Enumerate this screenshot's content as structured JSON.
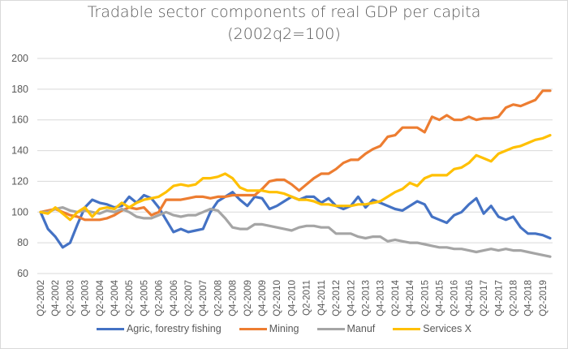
{
  "chart_data": {
    "type": "line",
    "title": "Tradable sector components of real GDP per capita",
    "subtitle": "(2002q2=100)",
    "xlabel": "",
    "ylabel": "",
    "ylim": [
      60,
      200
    ],
    "yticks": [
      60,
      80,
      100,
      120,
      140,
      160,
      180,
      200
    ],
    "grid": true,
    "legend_position": "bottom",
    "x": [
      "Q2-2002",
      "Q3-2002",
      "Q4-2002",
      "Q1-2003",
      "Q2-2003",
      "Q3-2003",
      "Q4-2003",
      "Q1-2004",
      "Q2-2004",
      "Q3-2004",
      "Q4-2004",
      "Q1-2005",
      "Q2-2005",
      "Q3-2005",
      "Q4-2005",
      "Q1-2006",
      "Q2-2006",
      "Q3-2006",
      "Q4-2006",
      "Q1-2007",
      "Q2-2007",
      "Q3-2007",
      "Q4-2007",
      "Q1-2008",
      "Q2-2008",
      "Q3-2008",
      "Q4-2008",
      "Q1-2009",
      "Q2-2009",
      "Q3-2009",
      "Q4-2009",
      "Q1-2010",
      "Q2-2010",
      "Q3-2010",
      "Q4-2010",
      "Q1-2011",
      "Q2-2011",
      "Q3-2011",
      "Q4-2011",
      "Q1-2012",
      "Q2-2012",
      "Q3-2012",
      "Q4-2012",
      "Q1-2013",
      "Q2-2013",
      "Q3-2013",
      "Q4-2013",
      "Q1-2014",
      "Q2-2014",
      "Q3-2014",
      "Q4-2014",
      "Q1-2015",
      "Q2-2015",
      "Q3-2015",
      "Q4-2015",
      "Q1-2016",
      "Q2-2016",
      "Q3-2016",
      "Q4-2016",
      "Q1-2017",
      "Q2-2017",
      "Q3-2017",
      "Q4-2017",
      "Q1-2018",
      "Q2-2018",
      "Q3-2018",
      "Q4-2018",
      "Q1-2019",
      "Q2-2019",
      "Q3-2019"
    ],
    "tick_labels": [
      "Q2-2002",
      "Q4-2002",
      "Q2-2003",
      "Q4-2003",
      "Q2-2004",
      "Q4-2004",
      "Q2-2005",
      "Q4-2005",
      "Q2-2006",
      "Q4-2006",
      "Q2-2007",
      "Q4-2007",
      "Q2-2008",
      "Q4-2008",
      "Q2-2009",
      "Q4-2009",
      "Q2-2010",
      "Q4-2010",
      "Q2-2011",
      "Q4-2011",
      "Q2-2012",
      "Q4-2012",
      "Q2-2013",
      "Q4-2013",
      "Q2-2014",
      "Q4-2014",
      "Q2-2015",
      "Q4-2015",
      "Q2-2016",
      "Q4-2016",
      "Q2-2017",
      "Q4-2017",
      "Q2-2018",
      "Q4-2018",
      "Q2-2019"
    ],
    "series": [
      {
        "name": "Agric, forestry fishing",
        "color": "#4472c4",
        "values": [
          100,
          89,
          84,
          77,
          80,
          92,
          103,
          108,
          106,
          105,
          103,
          104,
          110,
          106,
          111,
          109,
          103,
          95,
          87,
          89,
          87,
          88,
          89,
          100,
          107,
          110,
          113,
          108,
          104,
          110,
          109,
          102,
          104,
          107,
          110,
          108,
          110,
          110,
          106,
          109,
          104,
          102,
          104,
          110,
          103,
          108,
          106,
          104,
          102,
          101,
          104,
          107,
          105,
          97,
          95,
          93,
          98,
          100,
          105,
          109,
          99,
          104,
          97,
          95,
          97,
          90,
          86,
          86,
          85,
          83
        ]
      },
      {
        "name": "Mining",
        "color": "#ed7d31",
        "values": [
          100,
          101,
          102,
          100,
          98,
          97,
          95,
          95,
          95,
          96,
          98,
          101,
          103,
          102,
          103,
          98,
          100,
          108,
          108,
          108,
          109,
          110,
          110,
          109,
          110,
          110,
          111,
          111,
          111,
          111,
          115,
          120,
          121,
          121,
          118,
          114,
          118,
          122,
          125,
          125,
          128,
          132,
          134,
          134,
          138,
          141,
          143,
          149,
          150,
          155,
          155,
          155,
          152,
          162,
          160,
          163,
          160,
          160,
          162,
          160,
          161,
          161,
          162,
          168,
          170,
          169,
          171,
          173,
          179,
          179
        ]
      },
      {
        "name": "Manuf",
        "color": "#a5a5a5",
        "values": [
          100,
          100,
          102,
          103,
          101,
          100,
          101,
          100,
          99,
          101,
          100,
          102,
          100,
          97,
          96,
          96,
          98,
          100,
          98,
          97,
          98,
          98,
          100,
          102,
          101,
          96,
          90,
          89,
          89,
          92,
          92,
          91,
          90,
          89,
          88,
          90,
          91,
          91,
          90,
          90,
          86,
          86,
          86,
          84,
          83,
          84,
          84,
          81,
          82,
          81,
          80,
          80,
          79,
          78,
          77,
          77,
          76,
          76,
          75,
          74,
          75,
          76,
          75,
          76,
          75,
          75,
          74,
          73,
          72,
          71
        ]
      },
      {
        "name": "Services X",
        "color": "#ffc000",
        "values": [
          100,
          99,
          103,
          99,
          95,
          100,
          103,
          97,
          102,
          103,
          102,
          106,
          103,
          106,
          108,
          109,
          110,
          113,
          117,
          118,
          117,
          118,
          122,
          122,
          123,
          125,
          122,
          116,
          114,
          114,
          114,
          113,
          113,
          112,
          110,
          108,
          108,
          107,
          105,
          105,
          104,
          104,
          104,
          105,
          105,
          106,
          107,
          110,
          113,
          115,
          119,
          117,
          122,
          124,
          124,
          124,
          128,
          129,
          132,
          137,
          135,
          133,
          138,
          140,
          142,
          143,
          145,
          147,
          148,
          150
        ]
      }
    ]
  }
}
